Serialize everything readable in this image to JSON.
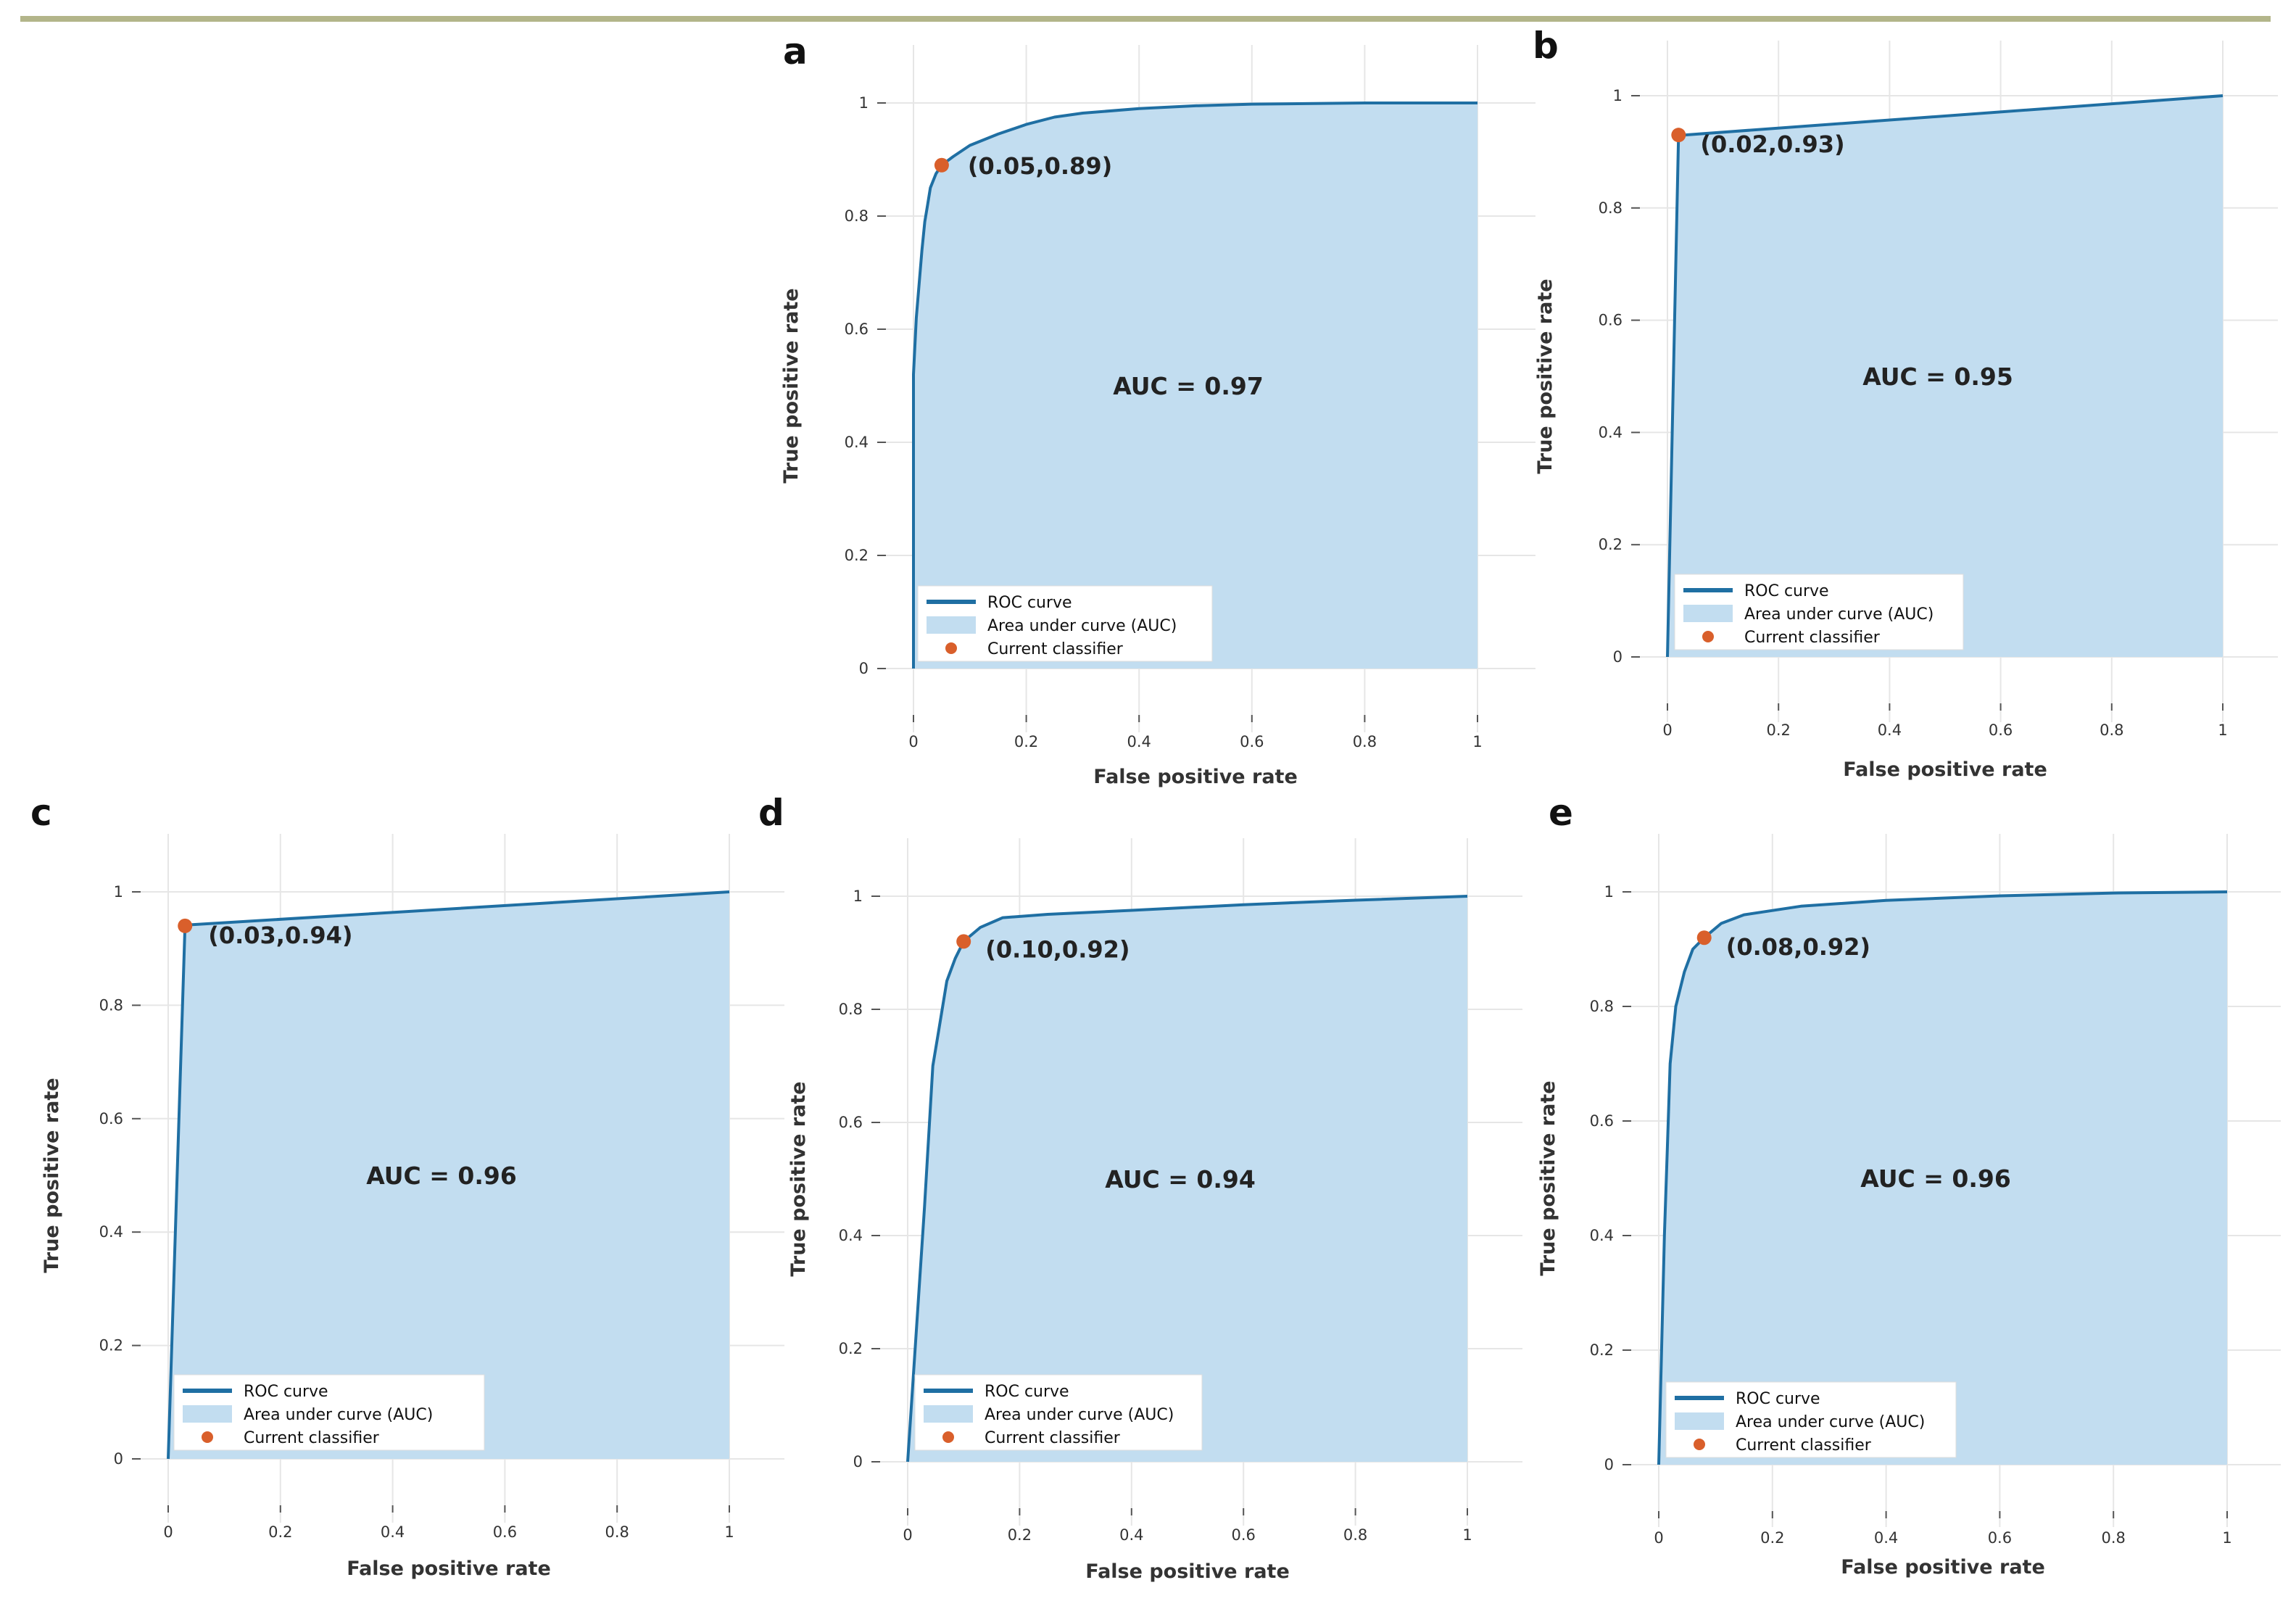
{
  "chart_data": [
    {
      "panel": "a",
      "type": "line",
      "xlabel": "False positive rate",
      "ylabel": "True positive rate",
      "xlim": [
        0,
        1
      ],
      "ylim": [
        0,
        1
      ],
      "xticks": [
        "0",
        "0.2",
        "0.4",
        "0.6",
        "0.8",
        "1"
      ],
      "yticks": [
        "0",
        "0.2",
        "0.4",
        "0.6",
        "0.8",
        "1"
      ],
      "auc_text": "AUC = 0.97",
      "classifier_point": [
        0.05,
        0.89
      ],
      "classifier_label": "(0.05,0.89)",
      "legend": [
        "ROC curve",
        "Area under curve (AUC)",
        "Current classifier"
      ],
      "roc": [
        [
          0,
          0
        ],
        [
          0,
          0.52
        ],
        [
          0.005,
          0.62
        ],
        [
          0.01,
          0.68
        ],
        [
          0.015,
          0.74
        ],
        [
          0.02,
          0.79
        ],
        [
          0.025,
          0.82
        ],
        [
          0.03,
          0.85
        ],
        [
          0.04,
          0.875
        ],
        [
          0.05,
          0.89
        ],
        [
          0.07,
          0.905
        ],
        [
          0.1,
          0.925
        ],
        [
          0.15,
          0.945
        ],
        [
          0.2,
          0.962
        ],
        [
          0.25,
          0.975
        ],
        [
          0.3,
          0.982
        ],
        [
          0.4,
          0.99
        ],
        [
          0.5,
          0.995
        ],
        [
          0.6,
          0.998
        ],
        [
          0.8,
          1.0
        ],
        [
          1,
          1
        ]
      ]
    },
    {
      "panel": "b",
      "type": "line",
      "xlabel": "False positive rate",
      "ylabel": "True positive rate",
      "xlim": [
        0,
        1
      ],
      "ylim": [
        0,
        1
      ],
      "xticks": [
        "0",
        "0.2",
        "0.4",
        "0.6",
        "0.8",
        "1"
      ],
      "yticks": [
        "0",
        "0.2",
        "0.4",
        "0.6",
        "0.8",
        "1"
      ],
      "auc_text": "AUC = 0.95",
      "classifier_point": [
        0.02,
        0.93
      ],
      "classifier_label": "(0.02,0.93)",
      "legend": [
        "ROC curve",
        "Area under curve (AUC)",
        "Current classifier"
      ],
      "roc": [
        [
          0,
          0
        ],
        [
          0.02,
          0.93
        ],
        [
          0.03,
          0.93
        ],
        [
          1,
          1
        ]
      ]
    },
    {
      "panel": "c",
      "type": "line",
      "xlabel": "False positive rate",
      "ylabel": "True positive rate",
      "xlim": [
        0,
        1
      ],
      "ylim": [
        0,
        1
      ],
      "xticks": [
        "0",
        "0.2",
        "0.4",
        "0.6",
        "0.8",
        "1"
      ],
      "yticks": [
        "0",
        "0.2",
        "0.4",
        "0.6",
        "0.8",
        "1"
      ],
      "auc_text": "AUC = 0.96",
      "classifier_point": [
        0.03,
        0.94
      ],
      "classifier_label": "(0.03,0.94)",
      "legend": [
        "ROC curve",
        "Area under curve (AUC)",
        "Current classifier"
      ],
      "roc": [
        [
          0,
          0
        ],
        [
          0.03,
          0.94
        ],
        [
          0.04,
          0.942
        ],
        [
          1,
          1
        ]
      ]
    },
    {
      "panel": "d",
      "type": "line",
      "xlabel": "False positive rate",
      "ylabel": "True positive rate",
      "xlim": [
        0,
        1
      ],
      "ylim": [
        0,
        1
      ],
      "xticks": [
        "0",
        "0.2",
        "0.4",
        "0.6",
        "0.8",
        "1"
      ],
      "yticks": [
        "0",
        "0.2",
        "0.4",
        "0.6",
        "0.8",
        "1"
      ],
      "auc_text": "AUC = 0.94",
      "classifier_point": [
        0.1,
        0.92
      ],
      "classifier_label": "(0.10,0.92)",
      "legend": [
        "ROC curve",
        "Area under curve (AUC)",
        "Current classifier"
      ],
      "roc": [
        [
          0,
          0
        ],
        [
          0.03,
          0.45
        ],
        [
          0.045,
          0.7
        ],
        [
          0.055,
          0.76
        ],
        [
          0.07,
          0.85
        ],
        [
          0.085,
          0.89
        ],
        [
          0.1,
          0.92
        ],
        [
          0.13,
          0.945
        ],
        [
          0.17,
          0.962
        ],
        [
          0.25,
          0.968
        ],
        [
          0.4,
          0.975
        ],
        [
          0.6,
          0.985
        ],
        [
          0.8,
          0.993
        ],
        [
          1,
          1
        ]
      ]
    },
    {
      "panel": "e",
      "type": "line",
      "xlabel": "False positive rate",
      "ylabel": "True positive rate",
      "xlim": [
        0,
        1
      ],
      "ylim": [
        0,
        1
      ],
      "xticks": [
        "0",
        "0.2",
        "0.4",
        "0.6",
        "0.8",
        "1"
      ],
      "yticks": [
        "0",
        "0.2",
        "0.4",
        "0.6",
        "0.8",
        "1"
      ],
      "auc_text": "AUC = 0.96",
      "classifier_point": [
        0.08,
        0.92
      ],
      "classifier_label": "(0.08,0.92)",
      "legend": [
        "ROC curve",
        "Area under curve (AUC)",
        "Current classifier"
      ],
      "roc": [
        [
          0,
          0
        ],
        [
          0.01,
          0.4
        ],
        [
          0.015,
          0.55
        ],
        [
          0.02,
          0.7
        ],
        [
          0.03,
          0.8
        ],
        [
          0.045,
          0.86
        ],
        [
          0.06,
          0.9
        ],
        [
          0.08,
          0.92
        ],
        [
          0.11,
          0.945
        ],
        [
          0.15,
          0.96
        ],
        [
          0.25,
          0.975
        ],
        [
          0.4,
          0.985
        ],
        [
          0.6,
          0.993
        ],
        [
          0.8,
          0.998
        ],
        [
          1,
          1
        ]
      ]
    }
  ],
  "colors": {
    "roc_line": "#1f6fa3",
    "auc_fill": "#c2ddf0",
    "classifier_point": "#d95f2b",
    "grid": "#e6e6e6",
    "top_rule": "#b3b58a"
  }
}
